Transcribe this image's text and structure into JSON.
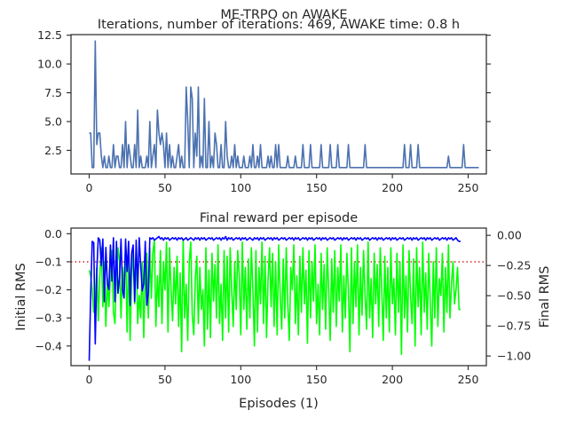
{
  "figure": {
    "suptitle": "ME-TRPO on AWAKE"
  },
  "chart_data": [
    {
      "type": "line",
      "title": "Iterations, number of iterations: 469, AWAKE time: 0.8 h",
      "xlabel": "",
      "ylabel": "",
      "xlim": [
        -12,
        262
      ],
      "ylim": [
        0.45,
        12.55
      ],
      "xticks": [
        0,
        50,
        100,
        150,
        200,
        250
      ],
      "yticks": [
        2.5,
        5.0,
        7.5,
        10.0,
        12.5
      ],
      "ytick_labels": [
        "2.5",
        "5.0",
        "7.5",
        "10.0",
        "12.5"
      ],
      "grid": false,
      "series": [
        {
          "name": "",
          "color": "#4c72b0",
          "values": [
            4,
            4,
            1,
            1,
            12,
            3,
            4,
            4,
            2,
            1,
            2,
            1,
            1,
            2,
            1,
            1,
            3,
            1,
            2,
            2,
            1,
            1,
            3,
            1,
            5,
            1,
            3,
            2,
            1,
            1,
            3,
            1,
            6,
            1,
            2,
            1,
            1,
            1,
            2,
            1,
            5,
            1,
            2,
            3,
            1,
            6,
            4,
            3,
            4,
            3,
            1,
            4,
            1,
            3,
            1,
            2,
            1,
            1,
            2,
            3,
            1,
            2,
            1,
            1,
            8,
            5,
            1,
            8,
            7,
            1,
            4,
            2,
            8,
            1,
            2,
            1,
            7,
            1,
            1,
            5,
            1,
            2,
            1,
            4,
            3,
            1,
            1,
            3,
            1,
            1,
            5,
            2,
            1,
            1,
            2,
            1,
            3,
            1,
            2,
            1,
            1,
            1,
            2,
            1,
            1,
            1,
            2,
            1,
            3,
            1,
            1,
            2,
            1,
            3,
            1,
            1,
            1,
            1,
            2,
            1,
            2,
            1,
            1,
            3,
            1,
            3,
            1,
            1,
            1,
            1,
            1,
            2,
            1,
            1,
            1,
            1,
            2,
            1,
            1,
            1,
            1,
            3,
            1,
            1,
            1,
            1,
            3,
            1,
            1,
            1,
            1,
            1,
            1,
            3,
            1,
            1,
            1,
            1,
            1,
            3,
            1,
            1,
            1,
            1,
            3,
            1,
            1,
            1,
            1,
            1,
            1,
            3,
            1,
            1,
            1,
            1,
            1,
            1,
            1,
            1,
            1,
            1,
            3,
            1,
            1,
            1,
            1,
            1,
            1,
            1,
            1,
            1,
            1,
            1,
            1,
            1,
            1,
            1,
            1,
            1,
            1,
            1,
            1,
            1,
            1,
            1,
            1,
            1,
            3,
            1,
            1,
            1,
            3,
            1,
            1,
            1,
            1,
            3,
            1,
            1,
            1,
            1,
            1,
            1,
            1,
            1,
            1,
            1,
            1,
            1,
            1,
            1,
            1,
            1,
            1,
            1,
            1,
            2,
            1,
            1,
            1,
            1,
            1,
            1,
            1,
            1,
            1,
            3,
            1,
            1,
            1,
            1,
            1,
            1,
            1,
            1,
            1,
            1
          ]
        }
      ]
    },
    {
      "type": "line",
      "title": "Final reward per episode",
      "xlabel": "Episodes (1)",
      "ylabel": "Initial RMS",
      "ylabel_right": "Final RMS",
      "xlim": [
        -12,
        262
      ],
      "ylim": [
        -0.47,
        0.02
      ],
      "ylim_right": [
        -1.08,
        0.06
      ],
      "xticks": [
        0,
        50,
        100,
        150,
        200,
        250
      ],
      "yticks": [
        -0.4,
        -0.3,
        -0.2,
        -0.1,
        0.0
      ],
      "ytick_labels": [
        "−0.4",
        "−0.3",
        "−0.2",
        "−0.1",
        "0.0"
      ],
      "yticks_right": [
        -1.0,
        -0.75,
        -0.5,
        -0.25,
        0.0
      ],
      "ytick_labels_right": [
        "−1.00",
        "−0.75",
        "−0.50",
        "−0.25",
        "0.00"
      ],
      "grid": false,
      "threshold": {
        "value": -0.1,
        "color": "#d62728",
        "style": "dotted"
      },
      "colors": {
        "left_axis": "#00ff00",
        "right_axis": "#0000ff"
      },
      "series": [
        {
          "name": "",
          "axis": "left",
          "color": "#00ff00",
          "values": [
            -0.13,
            -0.15,
            -0.2,
            -0.28,
            -0.24,
            -0.12,
            -0.31,
            -0.15,
            -0.05,
            -0.26,
            -0.1,
            -0.33,
            -0.16,
            -0.26,
            -0.15,
            -0.06,
            -0.28,
            -0.32,
            -0.14,
            -0.05,
            -0.1,
            -0.3,
            -0.12,
            -0.2,
            -0.04,
            -0.35,
            -0.07,
            -0.38,
            -0.16,
            -0.06,
            -0.25,
            -0.05,
            -0.32,
            -0.22,
            -0.3,
            -0.1,
            -0.37,
            -0.14,
            -0.07,
            -0.3,
            -0.05,
            -0.23,
            -0.07,
            -0.02,
            -0.33,
            -0.15,
            -0.26,
            -0.06,
            -0.32,
            -0.1,
            -0.2,
            -0.03,
            -0.35,
            -0.05,
            -0.2,
            -0.31,
            -0.12,
            -0.25,
            -0.08,
            -0.33,
            -0.14,
            -0.42,
            -0.02,
            -0.3,
            -0.18,
            -0.38,
            -0.1,
            -0.03,
            -0.29,
            -0.36,
            -0.16,
            -0.08,
            -0.32,
            -0.12,
            -0.27,
            -0.2,
            -0.4,
            -0.05,
            -0.34,
            -0.13,
            -0.37,
            -0.07,
            -0.24,
            -0.11,
            -0.3,
            -0.04,
            -0.32,
            -0.18,
            -0.38,
            -0.06,
            -0.3,
            -0.08,
            -0.35,
            -0.05,
            -0.2,
            -0.33,
            -0.1,
            -0.27,
            -0.06,
            -0.15,
            -0.36,
            -0.03,
            -0.27,
            -0.12,
            -0.34,
            -0.09,
            -0.3,
            -0.05,
            -0.2,
            -0.4,
            -0.06,
            -0.35,
            -0.12,
            -0.25,
            -0.03,
            -0.32,
            -0.08,
            -0.37,
            -0.16,
            -0.05,
            -0.26,
            -0.07,
            -0.33,
            -0.1,
            -0.36,
            -0.04,
            -0.22,
            -0.34,
            -0.09,
            -0.3,
            -0.05,
            -0.25,
            -0.38,
            -0.12,
            -0.2,
            -0.04,
            -0.32,
            -0.15,
            -0.36,
            -0.08,
            -0.28,
            -0.05,
            -0.25,
            -0.13,
            -0.39,
            -0.06,
            -0.3,
            -0.1,
            -0.24,
            -0.04,
            -0.32,
            -0.18,
            -0.36,
            -0.07,
            -0.27,
            -0.11,
            -0.34,
            -0.05,
            -0.2,
            -0.38,
            -0.09,
            -0.28,
            -0.06,
            -0.33,
            -0.12,
            -0.24,
            -0.04,
            -0.35,
            -0.15,
            -0.3,
            -0.07,
            -0.2,
            -0.42,
            -0.05,
            -0.32,
            -0.1,
            -0.26,
            -0.04,
            -0.36,
            -0.12,
            -0.29,
            -0.06,
            -0.22,
            -0.34,
            -0.03,
            -0.3,
            -0.16,
            -0.37,
            -0.07,
            -0.25,
            -0.11,
            -0.33,
            -0.05,
            -0.2,
            -0.38,
            -0.08,
            -0.3,
            -0.12,
            -0.35,
            -0.05,
            -0.25,
            -0.16,
            -0.36,
            -0.07,
            -0.28,
            -0.1,
            -0.43,
            -0.04,
            -0.3,
            -0.15,
            -0.35,
            -0.06,
            -0.22,
            -0.32,
            -0.09,
            -0.4,
            -0.05,
            -0.26,
            -0.12,
            -0.36,
            -0.03,
            -0.28,
            -0.14,
            -0.34,
            -0.07,
            -0.25,
            -0.4,
            -0.1,
            -0.3,
            -0.05,
            -0.33,
            -0.16,
            -0.22,
            -0.07,
            -0.35,
            -0.12,
            -0.28,
            -0.04,
            -0.3,
            -0.18,
            -0.1,
            -0.25,
            -0.2,
            -0.12,
            -0.27,
            -0.27
          ]
        },
        {
          "name": "",
          "axis": "right",
          "color": "#0000ff",
          "values": [
            -1.04,
            -0.48,
            -0.05,
            -0.06,
            -0.9,
            -0.3,
            -0.02,
            -0.04,
            -0.25,
            -0.03,
            -0.55,
            -0.1,
            -0.4,
            -0.45,
            -0.08,
            -0.38,
            -0.02,
            -0.55,
            -0.05,
            -0.48,
            -0.35,
            -0.03,
            -0.45,
            -0.52,
            -0.03,
            -0.3,
            -0.05,
            -0.58,
            -0.15,
            -0.08,
            -0.55,
            -0.04,
            -0.44,
            -0.02,
            -0.25,
            -0.46,
            -0.4,
            -0.05,
            -0.58,
            -0.48,
            -0.02,
            -0.03,
            -0.02,
            -0.04,
            -0.03,
            -0.02,
            -0.01,
            -0.03,
            -0.02,
            -0.04,
            -0.02,
            -0.03,
            -0.02,
            -0.04,
            -0.03,
            -0.02,
            -0.03,
            -0.02,
            -0.04,
            -0.02,
            -0.03,
            -0.02,
            -0.04,
            -0.03,
            -0.02,
            -0.04,
            -0.03,
            -0.02,
            -0.03,
            -0.04,
            -0.02,
            -0.03,
            -0.02,
            -0.04,
            -0.02,
            -0.03,
            -0.02,
            -0.04,
            -0.03,
            -0.02,
            -0.03,
            -0.02,
            -0.04,
            -0.03,
            -0.02,
            -0.03,
            -0.02,
            -0.04,
            -0.02,
            -0.03,
            -0.01,
            -0.04,
            -0.02,
            -0.03,
            -0.02,
            -0.04,
            -0.03,
            -0.02,
            -0.03,
            -0.02,
            -0.04,
            -0.02,
            -0.03,
            -0.02,
            -0.04,
            -0.03,
            -0.02,
            -0.03,
            -0.04,
            -0.02,
            -0.03,
            -0.02,
            -0.04,
            -0.02,
            -0.03,
            -0.02,
            -0.04,
            -0.03,
            -0.02,
            -0.03,
            -0.02,
            -0.04,
            -0.02,
            -0.03,
            -0.02,
            -0.04,
            -0.03,
            -0.02,
            -0.03,
            -0.02,
            -0.04,
            -0.03,
            -0.02,
            -0.03,
            -0.02,
            -0.04,
            -0.02,
            -0.03,
            -0.02,
            -0.04,
            -0.03,
            -0.02,
            -0.03,
            -0.02,
            -0.04,
            -0.02,
            -0.03,
            -0.02,
            -0.04,
            -0.03,
            -0.02,
            -0.03,
            -0.02,
            -0.04,
            -0.02,
            -0.03,
            -0.02,
            -0.04,
            -0.03,
            -0.02,
            -0.03,
            -0.02,
            -0.04,
            -0.03,
            -0.02,
            -0.03,
            -0.02,
            -0.04,
            -0.02,
            -0.03,
            -0.02,
            -0.04,
            -0.03,
            -0.02,
            -0.03,
            -0.02,
            -0.04,
            -0.02,
            -0.03,
            -0.02,
            -0.04,
            -0.03,
            -0.02,
            -0.03,
            -0.02,
            -0.04,
            -0.03,
            -0.02,
            -0.03,
            -0.02,
            -0.04,
            -0.02,
            -0.03,
            -0.02,
            -0.04,
            -0.03,
            -0.02,
            -0.03,
            -0.02,
            -0.04,
            -0.02,
            -0.03,
            -0.02,
            -0.04,
            -0.03,
            -0.02,
            -0.03,
            -0.02,
            -0.04,
            -0.03,
            -0.02,
            -0.03,
            -0.02,
            -0.04,
            -0.02,
            -0.03,
            -0.02,
            -0.04,
            -0.03,
            -0.02,
            -0.03,
            -0.02,
            -0.04,
            -0.02,
            -0.03,
            -0.02,
            -0.04,
            -0.03,
            -0.02,
            -0.03,
            -0.02,
            -0.04,
            -0.03,
            -0.02,
            -0.03,
            -0.02,
            -0.04,
            -0.02,
            -0.03,
            -0.02,
            -0.04,
            -0.03,
            -0.02,
            -0.04,
            -0.05,
            -0.05
          ]
        }
      ]
    }
  ]
}
